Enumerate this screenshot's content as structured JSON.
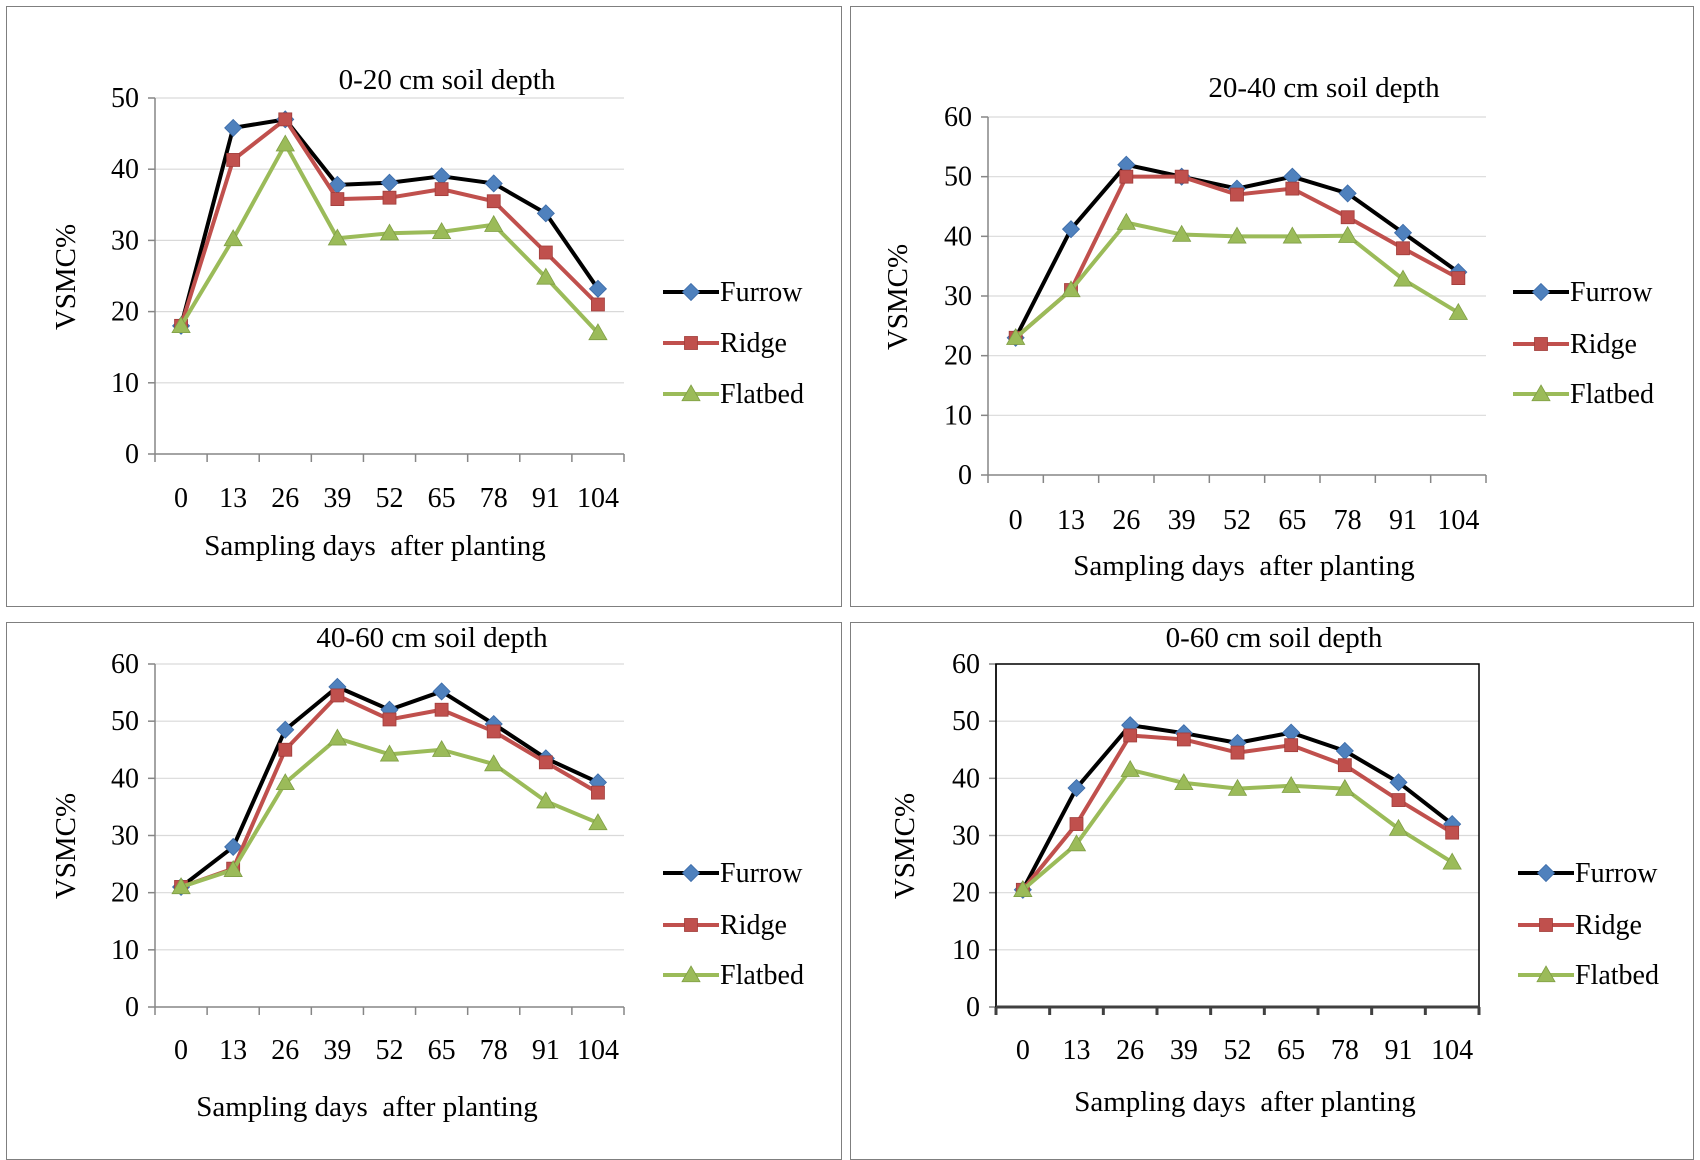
{
  "chart_data": [
    {
      "type": "line",
      "title": "0-20 cm soil depth",
      "xlabel": "Sampling days  after planting",
      "ylabel": "VSMC%",
      "categories": [
        "0",
        "13",
        "26",
        "39",
        "52",
        "65",
        "78",
        "91",
        "104"
      ],
      "ylim": [
        0,
        50
      ],
      "yticks": [
        "0",
        "10",
        "20",
        "30",
        "40",
        "50"
      ],
      "grid": true,
      "legend_position": "right",
      "series": [
        {
          "name": "Furrow",
          "color": "#000000",
          "marker_color": "#4f81bd",
          "marker": "diamond",
          "values": [
            18,
            45.8,
            47,
            37.8,
            38.1,
            39,
            38,
            33.8,
            23.2
          ]
        },
        {
          "name": "Ridge",
          "color": "#c0504d",
          "marker_color": "#c0504d",
          "marker": "square",
          "values": [
            18,
            41.3,
            47,
            35.8,
            36,
            37.2,
            35.5,
            28.3,
            21
          ]
        },
        {
          "name": "Flatbed",
          "color": "#9bbb59",
          "marker_color": "#9bbb59",
          "marker": "triangle",
          "values": [
            18,
            30.2,
            43.5,
            30.3,
            31,
            31.2,
            32.2,
            24.8,
            17
          ]
        }
      ]
    },
    {
      "type": "line",
      "title": "20-40 cm soil depth",
      "xlabel": "Sampling days  after planting",
      "ylabel": "VSMC%",
      "categories": [
        "0",
        "13",
        "26",
        "39",
        "52",
        "65",
        "78",
        "91",
        "104"
      ],
      "ylim": [
        0,
        60
      ],
      "yticks": [
        "0",
        "10",
        "20",
        "30",
        "40",
        "50",
        "60"
      ],
      "grid": true,
      "legend_position": "right",
      "series": [
        {
          "name": "Furrow",
          "color": "#000000",
          "marker_color": "#4f81bd",
          "marker": "diamond",
          "values": [
            23,
            41.2,
            52,
            50,
            48,
            50,
            47.2,
            40.6,
            34
          ]
        },
        {
          "name": "Ridge",
          "color": "#c0504d",
          "marker_color": "#c0504d",
          "marker": "square",
          "values": [
            23,
            31,
            50,
            50,
            47,
            48,
            43.2,
            38,
            33
          ]
        },
        {
          "name": "Flatbed",
          "color": "#9bbb59",
          "marker_color": "#9bbb59",
          "marker": "triangle",
          "values": [
            23,
            31,
            42.3,
            40.3,
            40,
            40,
            40.1,
            32.8,
            27.2
          ]
        }
      ]
    },
    {
      "type": "line",
      "title": "40-60 cm soil depth",
      "xlabel": "Sampling days  after planting",
      "ylabel": "VSMC%",
      "categories": [
        "0",
        "13",
        "26",
        "39",
        "52",
        "65",
        "78",
        "91",
        "104"
      ],
      "ylim": [
        0,
        60
      ],
      "yticks": [
        "0",
        "10",
        "20",
        "30",
        "40",
        "50",
        "60"
      ],
      "grid": true,
      "legend_position": "right",
      "series": [
        {
          "name": "Furrow",
          "color": "#000000",
          "marker_color": "#4f81bd",
          "marker": "diamond",
          "values": [
            21,
            28,
            48.5,
            56,
            52,
            55.2,
            49.5,
            43.5,
            39.3
          ]
        },
        {
          "name": "Ridge",
          "color": "#c0504d",
          "marker_color": "#c0504d",
          "marker": "square",
          "values": [
            21,
            24.2,
            45,
            54.5,
            50.3,
            52,
            48.2,
            42.8,
            37.5
          ]
        },
        {
          "name": "Flatbed",
          "color": "#9bbb59",
          "marker_color": "#9bbb59",
          "marker": "triangle",
          "values": [
            21,
            24,
            39.2,
            47,
            44.2,
            45,
            42.5,
            36,
            32.2
          ]
        }
      ]
    },
    {
      "type": "line",
      "title": "0-60 cm soil depth",
      "xlabel": "Sampling days  after planting",
      "ylabel": "VSMC%",
      "categories": [
        "0",
        "13",
        "26",
        "39",
        "52",
        "65",
        "78",
        "91",
        "104"
      ],
      "ylim": [
        0,
        60
      ],
      "yticks": [
        "0",
        "10",
        "20",
        "30",
        "40",
        "50",
        "60"
      ],
      "grid": true,
      "legend_position": "right",
      "series": [
        {
          "name": "Furrow",
          "color": "#000000",
          "marker_color": "#4f81bd",
          "marker": "diamond",
          "values": [
            20.5,
            38.3,
            49.3,
            47.9,
            46.2,
            48,
            44.8,
            39.3,
            32
          ]
        },
        {
          "name": "Ridge",
          "color": "#c0504d",
          "marker_color": "#c0504d",
          "marker": "square",
          "values": [
            20.5,
            32,
            47.5,
            46.8,
            44.5,
            45.8,
            42.3,
            36.2,
            30.5
          ]
        },
        {
          "name": "Flatbed",
          "color": "#9bbb59",
          "marker_color": "#9bbb59",
          "marker": "triangle",
          "values": [
            20.5,
            28.5,
            41.5,
            39.2,
            38.2,
            38.7,
            38.2,
            31.2,
            25.3
          ]
        }
      ]
    }
  ]
}
